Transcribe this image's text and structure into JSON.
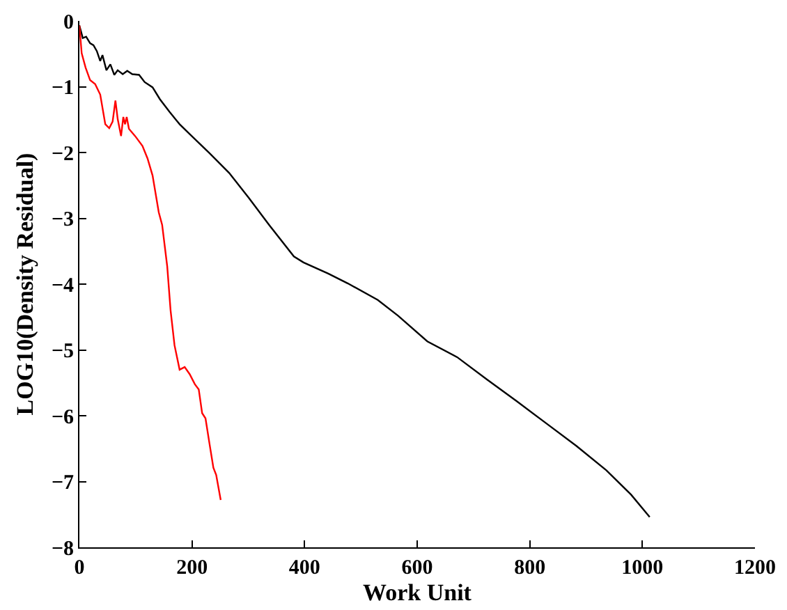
{
  "chart_data": {
    "type": "line",
    "xlabel": "Work Unit",
    "ylabel": "LOG10(Density Residual)",
    "xlim": [
      0,
      1200
    ],
    "xticks": [
      0,
      200,
      400,
      600,
      800,
      1000,
      1200
    ],
    "ylim": [
      -8,
      0
    ],
    "yticks": [
      -8,
      -7,
      -6,
      -5,
      -4,
      -3,
      -2,
      -1,
      0
    ],
    "marker": "none",
    "line_style": "solid",
    "series": [
      {
        "color": "#000000",
        "x": [
          0,
          6,
          12,
          19,
          25,
          31,
          37,
          41,
          48,
          55,
          62,
          68,
          77,
          85,
          94,
          106,
          116,
          130,
          143,
          160,
          178,
          196,
          231,
          266,
          301,
          337,
          381,
          398,
          442,
          477,
          530,
          566,
          618,
          671,
          724,
          777,
          830,
          883,
          936,
          980,
          1013
        ],
        "values": [
          -0.07,
          -0.26,
          -0.24,
          -0.34,
          -0.37,
          -0.46,
          -0.61,
          -0.52,
          -0.75,
          -0.66,
          -0.82,
          -0.75,
          -0.81,
          -0.76,
          -0.81,
          -0.82,
          -0.93,
          -1.01,
          -1.19,
          -1.38,
          -1.57,
          -1.72,
          -2.01,
          -2.31,
          -2.69,
          -3.1,
          -3.58,
          -3.67,
          -3.84,
          -3.99,
          -4.24,
          -4.48,
          -4.87,
          -5.11,
          -5.45,
          -5.78,
          -6.12,
          -6.46,
          -6.83,
          -7.2,
          -7.54
        ]
      },
      {
        "color": "#ff0000",
        "x": [
          0,
          4,
          11,
          19,
          28,
          37,
          46,
          53,
          59,
          64,
          68,
          74,
          78,
          81,
          84,
          88,
          99,
          112,
          121,
          130,
          141,
          147,
          156,
          162,
          169,
          178,
          187,
          196,
          205,
          212,
          218,
          224,
          231,
          238,
          243,
          251
        ],
        "values": [
          -0.07,
          -0.49,
          -0.71,
          -0.9,
          -0.96,
          -1.12,
          -1.57,
          -1.63,
          -1.53,
          -1.21,
          -1.49,
          -1.75,
          -1.46,
          -1.57,
          -1.46,
          -1.64,
          -1.75,
          -1.9,
          -2.09,
          -2.35,
          -2.91,
          -3.1,
          -3.73,
          -4.4,
          -4.93,
          -5.3,
          -5.26,
          -5.37,
          -5.52,
          -5.6,
          -5.96,
          -6.04,
          -6.42,
          -6.79,
          -6.9,
          -7.28
        ]
      }
    ]
  }
}
